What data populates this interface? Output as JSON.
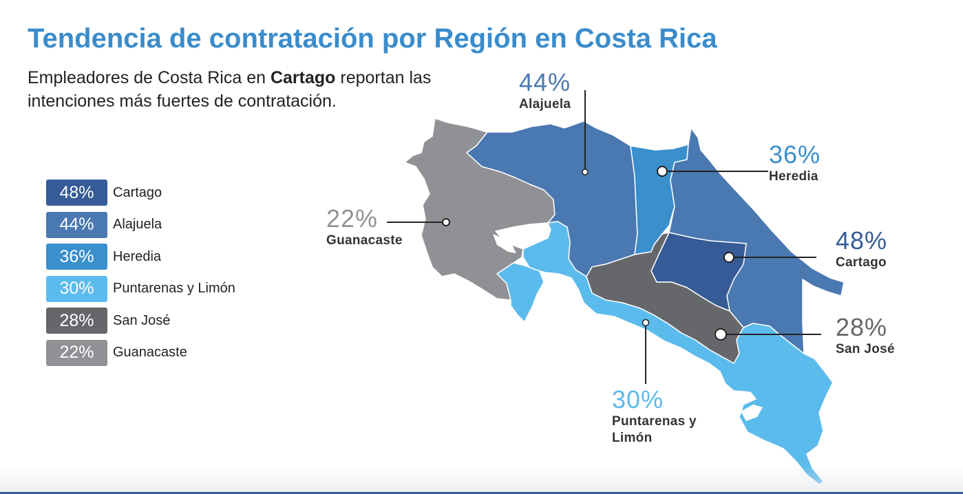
{
  "colors": {
    "title": "#3a8ccc",
    "cartago": "#365b96",
    "alajuela": "#4a78b1",
    "heredia": "#3a8fcd",
    "puntarenas_limon": "#5bbbec",
    "san_jose": "#66676b",
    "guanacaste": "#909194",
    "footer": "#3a5f9a"
  },
  "header": {
    "title": "Tendencia de contratación por Región en Costa Rica",
    "subtitle_pre": "Empleadores de Costa Rica en ",
    "subtitle_bold": "Cartago",
    "subtitle_post": " reportan las intenciones más fuertes de contratación."
  },
  "legend": [
    {
      "value": "48%",
      "label": "Cartago",
      "color": "#365b96"
    },
    {
      "value": "44%",
      "label": "Alajuela",
      "color": "#4a78b1"
    },
    {
      "value": "36%",
      "label": "Heredia",
      "color": "#3a8fcd"
    },
    {
      "value": "30%",
      "label": "Puntarenas y Limón",
      "color": "#5bbbec"
    },
    {
      "value": "28%",
      "label": "San José",
      "color": "#66676b"
    },
    {
      "value": "22%",
      "label": "Guanacaste",
      "color": "#909194"
    }
  ],
  "callouts": {
    "alajuela": {
      "pct": "44%",
      "name": "Alajuela"
    },
    "heredia": {
      "pct": "36%",
      "name": "Heredia"
    },
    "guanacaste": {
      "pct": "22%",
      "name": "Guanacaste"
    },
    "cartago": {
      "pct": "48%",
      "name": "Cartago"
    },
    "san_jose": {
      "pct": "28%",
      "name": "San José"
    },
    "puntarenas": {
      "pct": "30%",
      "name_line1": "Puntarenas y",
      "name_line2": "Limón"
    }
  }
}
